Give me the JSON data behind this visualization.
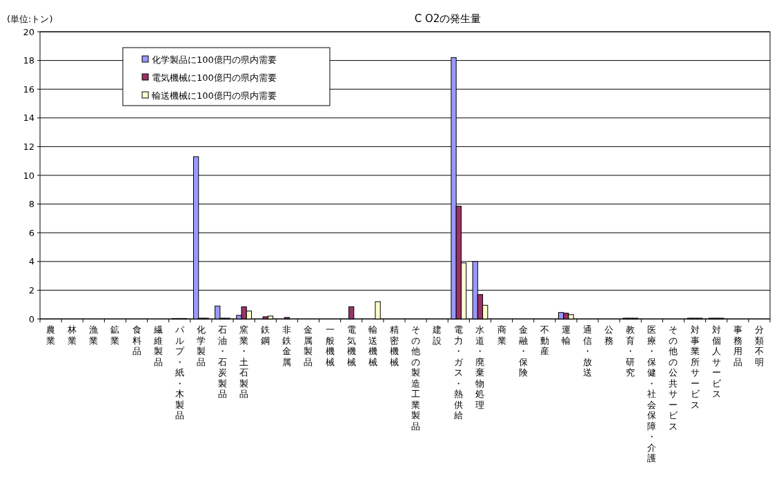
{
  "chart_data": {
    "type": "bar",
    "title": "C O2の発生量",
    "ylabel": "(単位:トン)",
    "categories": [
      "農業",
      "林業",
      "漁業",
      "鉱業",
      "食料品",
      "繊維製品",
      "パルプ・紙・木製品",
      "化学製品",
      "石油・石炭製品",
      "窯業・土石製品",
      "鉄鋼",
      "非鉄金属",
      "金属製品",
      "一般機械",
      "電気機械",
      "輸送機械",
      "精密機械",
      "その他の製造工業製品",
      "建設",
      "電力・ガス・熱供給",
      "水道・廃棄物処理",
      "商業",
      "金融・保険",
      "不動産",
      "運輸",
      "通信・放送",
      "公務",
      "教育・研究",
      "医療・保健・社会保障・介護",
      "その他の公共サービス",
      "対事業所サービス",
      "対個人サービス",
      "事務用品",
      "分類不明"
    ],
    "series": [
      {
        "name": "化学製品に100億円の県内需要",
        "color": "#9999ff",
        "values": [
          0,
          0,
          0,
          0,
          0,
          0,
          0.03,
          11.3,
          0.9,
          0.25,
          0,
          0,
          0,
          0,
          0,
          0,
          0,
          0,
          0,
          18.2,
          4.0,
          0,
          0,
          0,
          0.45,
          0,
          0,
          0.05,
          0,
          0,
          0.05,
          0.05,
          0,
          0
        ]
      },
      {
        "name": "電気機械に100億円の県内需要",
        "color": "#993366",
        "values": [
          0,
          0,
          0,
          0,
          0,
          0,
          0.03,
          0.05,
          0.05,
          0.85,
          0.15,
          0.1,
          0,
          0,
          0.85,
          0,
          0,
          0,
          0,
          7.85,
          1.7,
          0,
          0,
          0,
          0.4,
          0,
          0,
          0.05,
          0,
          0,
          0.05,
          0.05,
          0,
          0
        ]
      },
      {
        "name": "輸送機械に100億円の県内需要",
        "color": "#ffffcc",
        "values": [
          0,
          0,
          0,
          0,
          0,
          0,
          0.03,
          0.05,
          0.05,
          0.55,
          0.2,
          0,
          0,
          0,
          0,
          1.2,
          0,
          0,
          0,
          3.9,
          0.95,
          0,
          0,
          0,
          0.3,
          0,
          0,
          0.05,
          0,
          0,
          0.05,
          0.05,
          0,
          0
        ]
      }
    ],
    "ylim": [
      0,
      20
    ],
    "yticks": [
      0,
      2,
      4,
      6,
      8,
      10,
      12,
      14,
      16,
      18,
      20
    ],
    "grid": "y",
    "legend": "top left"
  }
}
